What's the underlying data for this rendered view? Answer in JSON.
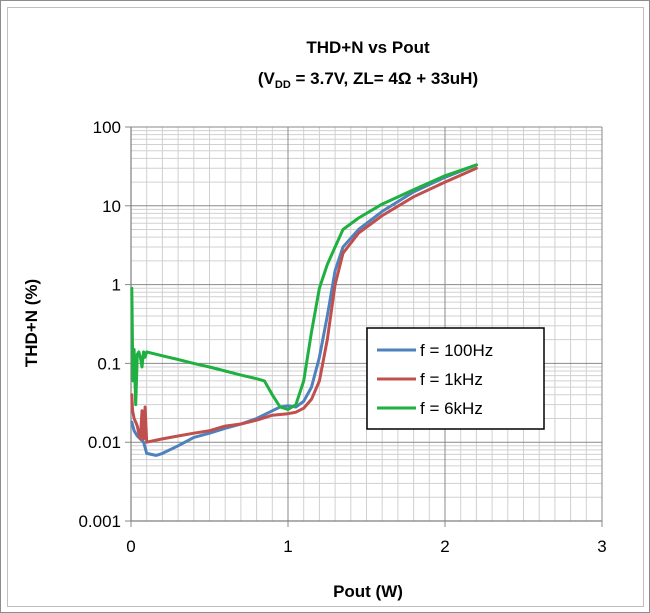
{
  "chart_data": {
    "type": "line",
    "title": "THD+N vs Pout",
    "subtitle": {
      "prefix": "(V",
      "subscript": "DD",
      "suffix": " = 3.7V, ZL= 4Ω + 33uH)"
    },
    "xlabel": "Pout (W)",
    "ylabel": "THD+N (%)",
    "xlim": [
      0,
      3
    ],
    "ylim": [
      0.001,
      100
    ],
    "yscale": "log",
    "grid": true,
    "legend_position": "right-middle",
    "x_ticks": [
      "0",
      "1",
      "2",
      "3"
    ],
    "y_ticks": [
      "0.001",
      "0.01",
      "0.1",
      "1",
      "10",
      "100"
    ],
    "series": [
      {
        "name": "f = 100Hz",
        "color": "#4f81bd",
        "points": [
          [
            0.005,
            0.018
          ],
          [
            0.02,
            0.014
          ],
          [
            0.04,
            0.012
          ],
          [
            0.06,
            0.011
          ],
          [
            0.08,
            0.01
          ],
          [
            0.1,
            0.0072
          ],
          [
            0.13,
            0.007
          ],
          [
            0.16,
            0.0068
          ],
          [
            0.2,
            0.0072
          ],
          [
            0.3,
            0.009
          ],
          [
            0.4,
            0.0115
          ],
          [
            0.5,
            0.013
          ],
          [
            0.6,
            0.015
          ],
          [
            0.7,
            0.017
          ],
          [
            0.8,
            0.02
          ],
          [
            0.9,
            0.025
          ],
          [
            0.95,
            0.028
          ],
          [
            1.0,
            0.029
          ],
          [
            1.05,
            0.028
          ],
          [
            1.1,
            0.033
          ],
          [
            1.15,
            0.05
          ],
          [
            1.2,
            0.12
          ],
          [
            1.25,
            0.4
          ],
          [
            1.3,
            1.5
          ],
          [
            1.35,
            3.0
          ],
          [
            1.45,
            5.0
          ],
          [
            1.6,
            8.5
          ],
          [
            1.8,
            15
          ],
          [
            2.0,
            23
          ],
          [
            2.2,
            33
          ]
        ]
      },
      {
        "name": "f = 1kHz",
        "color": "#c0504d",
        "points": [
          [
            0.005,
            0.04
          ],
          [
            0.01,
            0.025
          ],
          [
            0.02,
            0.02
          ],
          [
            0.03,
            0.018
          ],
          [
            0.04,
            0.016
          ],
          [
            0.05,
            0.013
          ],
          [
            0.06,
            0.011
          ],
          [
            0.07,
            0.025
          ],
          [
            0.08,
            0.011
          ],
          [
            0.09,
            0.028
          ],
          [
            0.1,
            0.01
          ],
          [
            0.15,
            0.0105
          ],
          [
            0.2,
            0.011
          ],
          [
            0.3,
            0.012
          ],
          [
            0.4,
            0.013
          ],
          [
            0.5,
            0.014
          ],
          [
            0.6,
            0.016
          ],
          [
            0.7,
            0.017
          ],
          [
            0.8,
            0.019
          ],
          [
            0.9,
            0.022
          ],
          [
            1.0,
            0.023
          ],
          [
            1.05,
            0.024
          ],
          [
            1.1,
            0.027
          ],
          [
            1.15,
            0.035
          ],
          [
            1.2,
            0.06
          ],
          [
            1.25,
            0.2
          ],
          [
            1.3,
            1.0
          ],
          [
            1.35,
            2.5
          ],
          [
            1.45,
            4.5
          ],
          [
            1.6,
            7.5
          ],
          [
            1.8,
            13
          ],
          [
            2.0,
            20
          ],
          [
            2.2,
            30
          ]
        ]
      },
      {
        "name": "f = 6kHz",
        "color": "#1eb040",
        "points": [
          [
            0.005,
            0.9
          ],
          [
            0.012,
            0.06
          ],
          [
            0.02,
            0.15
          ],
          [
            0.03,
            0.03
          ],
          [
            0.04,
            0.13
          ],
          [
            0.05,
            0.14
          ],
          [
            0.06,
            0.12
          ],
          [
            0.07,
            0.09
          ],
          [
            0.08,
            0.14
          ],
          [
            0.09,
            0.12
          ],
          [
            0.1,
            0.14
          ],
          [
            0.2,
            0.125
          ],
          [
            0.3,
            0.112
          ],
          [
            0.4,
            0.1
          ],
          [
            0.5,
            0.09
          ],
          [
            0.6,
            0.08
          ],
          [
            0.7,
            0.071
          ],
          [
            0.8,
            0.064
          ],
          [
            0.85,
            0.06
          ],
          [
            0.9,
            0.04
          ],
          [
            0.95,
            0.028
          ],
          [
            1.0,
            0.026
          ],
          [
            1.05,
            0.03
          ],
          [
            1.1,
            0.06
          ],
          [
            1.15,
            0.25
          ],
          [
            1.2,
            0.9
          ],
          [
            1.25,
            1.8
          ],
          [
            1.3,
            3.0
          ],
          [
            1.35,
            5.0
          ],
          [
            1.45,
            7.0
          ],
          [
            1.6,
            10.5
          ],
          [
            1.8,
            16
          ],
          [
            2.0,
            24
          ],
          [
            2.2,
            33
          ]
        ]
      }
    ]
  }
}
